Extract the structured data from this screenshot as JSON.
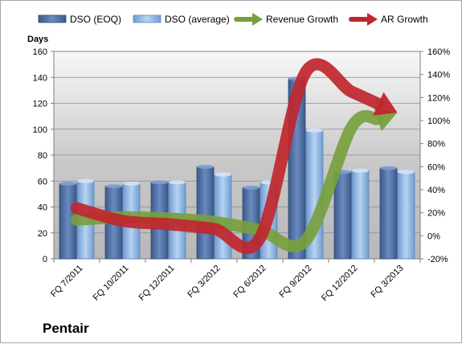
{
  "company": "Pentair",
  "chart_data": {
    "type": "bar",
    "title": "",
    "ylabel_left": "Days",
    "ylim_left": [
      0,
      160
    ],
    "ylim_right": [
      -20,
      160
    ],
    "y_ticks_left": [
      "0",
      "20",
      "40",
      "60",
      "80",
      "100",
      "120",
      "140",
      "160"
    ],
    "y_ticks_right": [
      "-20%",
      "0%",
      "20%",
      "40%",
      "60%",
      "80%",
      "100%",
      "120%",
      "140%",
      "160%"
    ],
    "categories": [
      "FQ 7/2011",
      "FQ 10/2011",
      "FQ 12/2011",
      "FQ 3/2012",
      "FQ 6/2012",
      "FQ 9/2012",
      "FQ 12/2012",
      "FQ 3/2013"
    ],
    "legend_position": "top",
    "grid": true,
    "series": [
      {
        "name": "DSO (EOQ)",
        "kind": "bar",
        "axis": "left",
        "color": "#4f6fa0",
        "values": [
          58,
          56,
          59,
          71,
          55,
          139,
          67,
          70
        ]
      },
      {
        "name": "DSO (average)",
        "kind": "bar",
        "axis": "left",
        "color": "#8cb3e0",
        "values": [
          60,
          58,
          59,
          65,
          59,
          99,
          68,
          67
        ]
      },
      {
        "name": "Revenue Growth",
        "kind": "arrow",
        "axis": "right",
        "color": "#77a03d",
        "values": [
          14,
          16,
          15,
          12,
          5,
          -4,
          94,
          107
        ]
      },
      {
        "name": "AR Growth",
        "kind": "arrow",
        "axis": "right",
        "color": "#c0262d",
        "values": [
          24,
          13,
          10,
          6,
          -2,
          142,
          125,
          107
        ]
      }
    ]
  }
}
